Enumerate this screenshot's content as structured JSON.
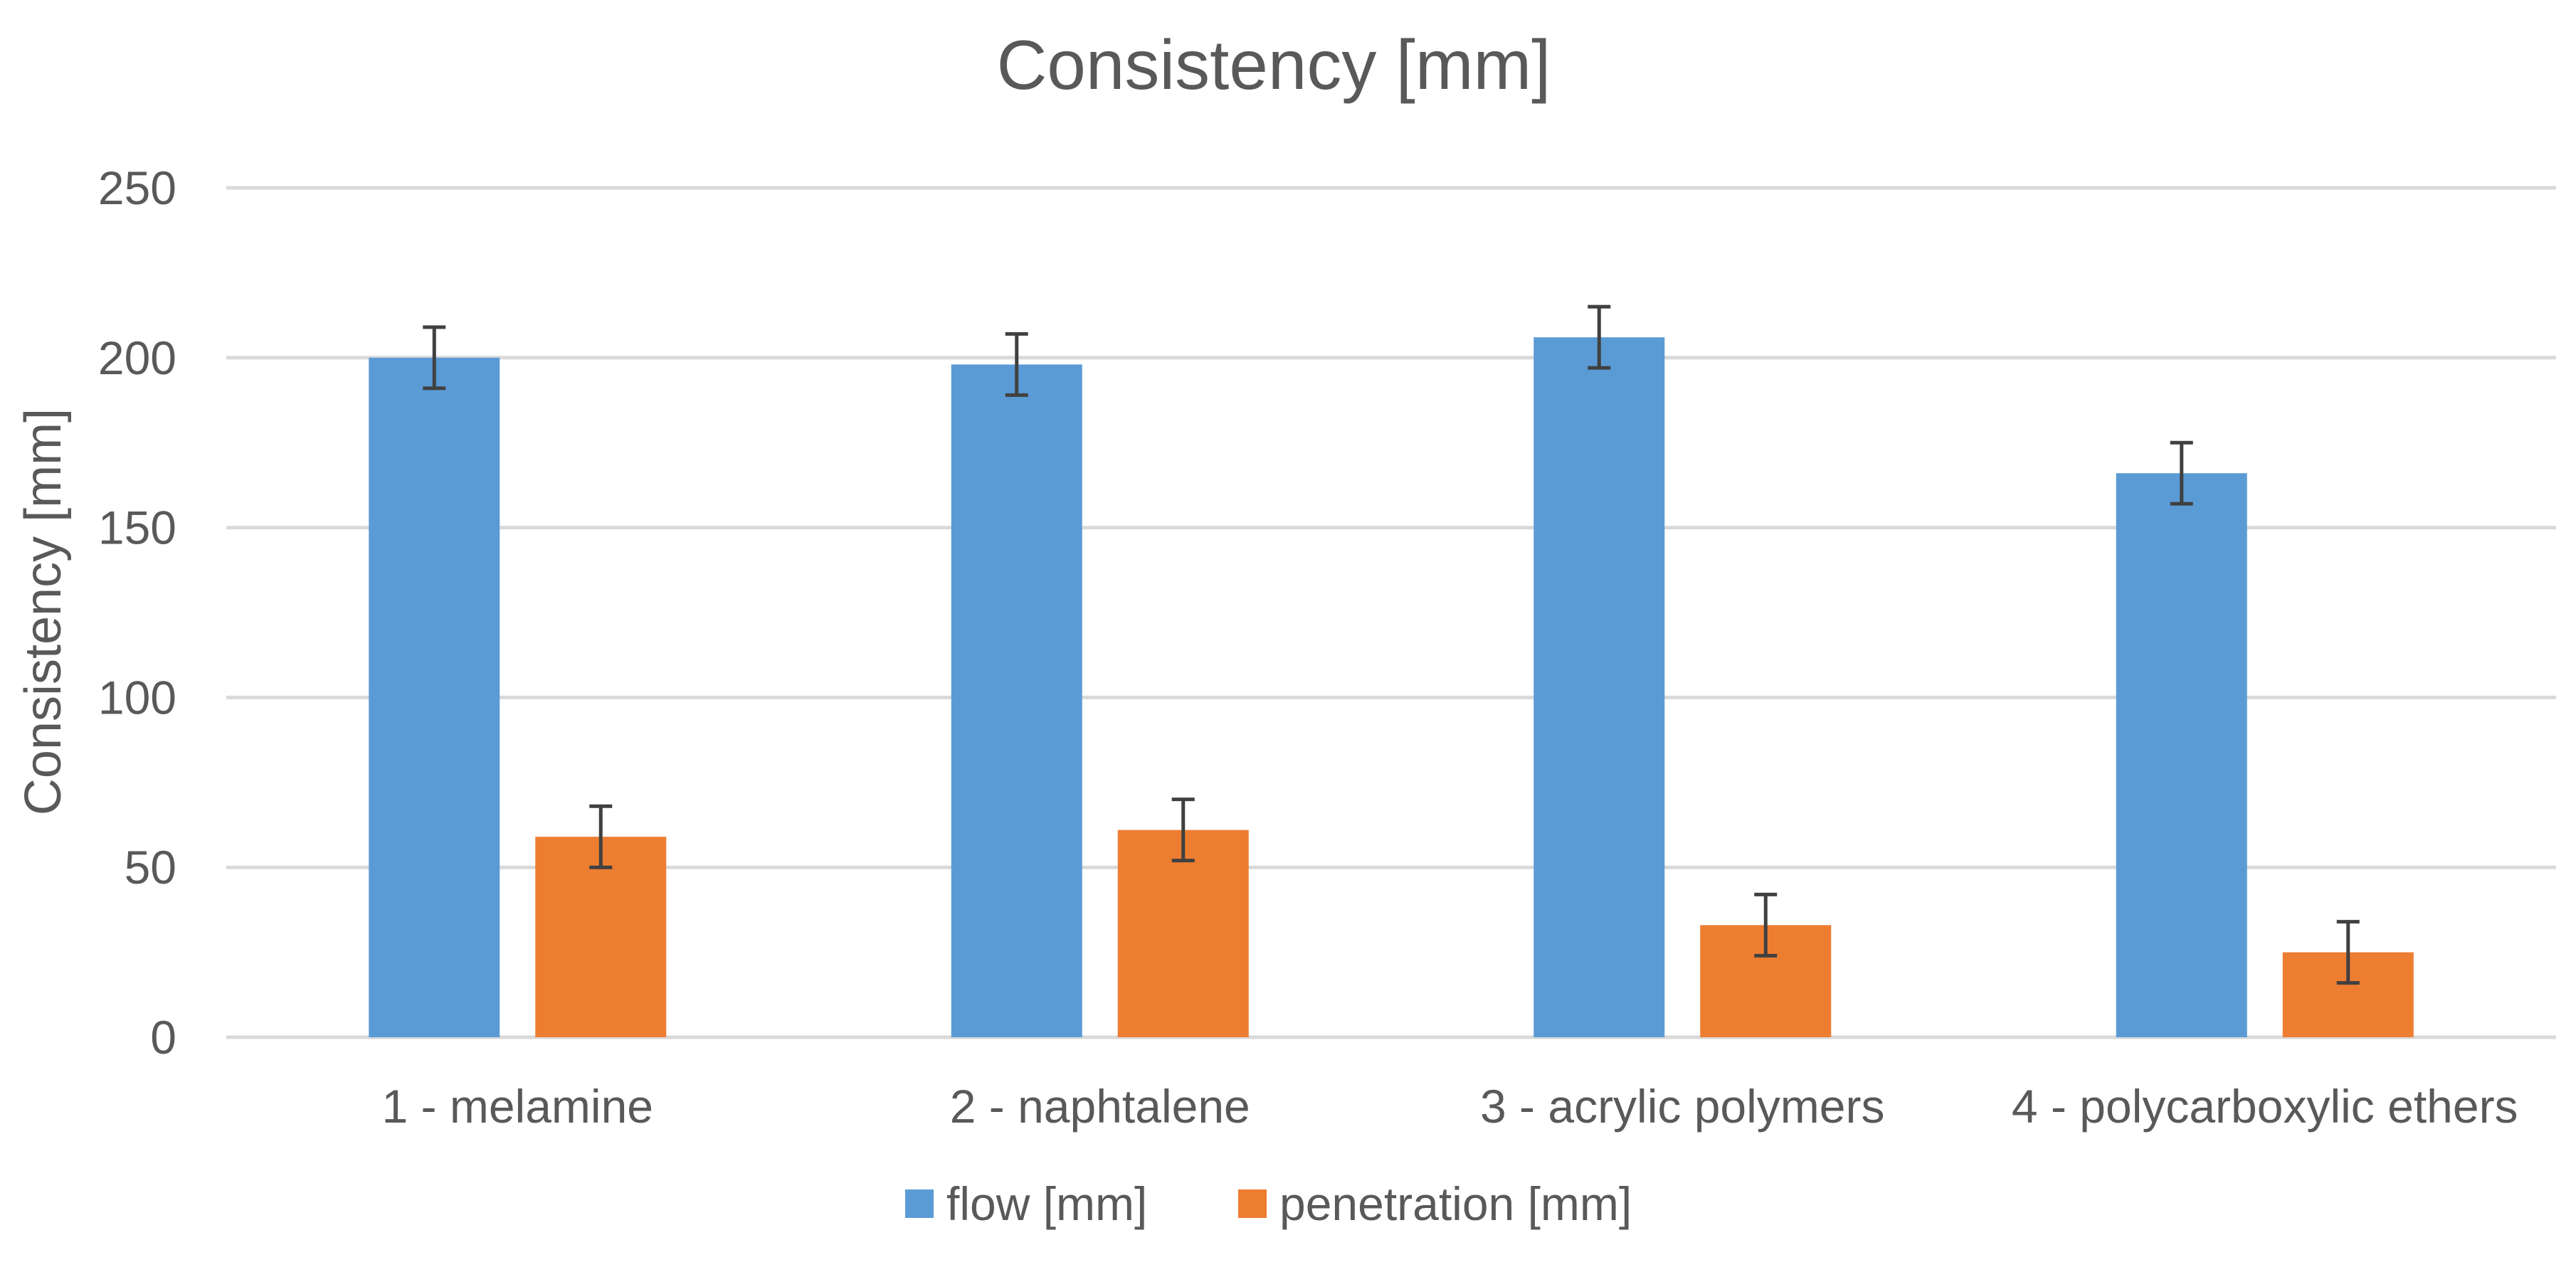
{
  "chart_data": {
    "type": "bar",
    "title": "Consistency [mm]",
    "xlabel": "",
    "ylabel": "Consistency [mm]",
    "ylim": [
      0,
      250
    ],
    "yticks": [
      0,
      50,
      100,
      150,
      200,
      250
    ],
    "grid": true,
    "legend_position": "bottom",
    "categories": [
      "1 - melamine",
      "2 - naphtalene",
      "3 - acrylic polymers",
      "4 - polycarboxylic ethers"
    ],
    "series": [
      {
        "name": "flow [mm]",
        "color": "#5b9bd5",
        "values": [
          200,
          198,
          206,
          166
        ],
        "errors": [
          9,
          9,
          9,
          9
        ]
      },
      {
        "name": "penetration [mm]",
        "color": "#ed7d31",
        "values": [
          59,
          61,
          33,
          25
        ],
        "errors": [
          9,
          9,
          9,
          9
        ]
      }
    ]
  }
}
